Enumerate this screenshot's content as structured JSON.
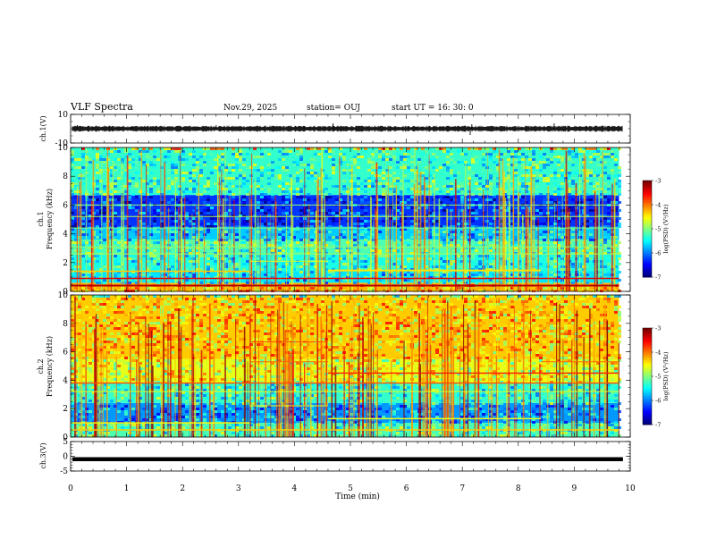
{
  "header": {
    "title": "VLF Spectra",
    "date": "Nov.29, 2025",
    "station": "station= OUJ",
    "start": "start  UT =   16: 30: 0"
  },
  "colors": {
    "background": "#ffffff",
    "axis": "#000000",
    "spectrogram_low": "#0a1a8c",
    "spectrogram_high": "#e00000"
  },
  "chart_data": [
    {
      "type": "line",
      "name": "ch1-waveform",
      "ylabel": "ch.1(V)",
      "ylim": [
        -10,
        10
      ],
      "yticks": [
        "10",
        "-10"
      ],
      "xlim": [
        0,
        10
      ],
      "baseline": 0
    },
    {
      "type": "heatmap",
      "name": "ch1-spectrogram",
      "ylabel_line1": "ch.1",
      "ylabel_line2": "Frequency  (kHz)",
      "ylim": [
        0,
        10
      ],
      "yticks": [
        "0",
        "2",
        "4",
        "6",
        "8",
        "10"
      ],
      "xlim": [
        0,
        9.8
      ],
      "colorbar": {
        "label": "log(PSD) (V²/Hz)",
        "range": [
          -7,
          -3
        ],
        "ticks": [
          "-3",
          "-4",
          "-5",
          "-6",
          "-7"
        ]
      },
      "bands_khz": [
        {
          "lo": 0,
          "hi": 0.6,
          "level": -4.2
        },
        {
          "lo": 0.6,
          "hi": 1.4,
          "level": -5.6
        },
        {
          "lo": 1.4,
          "hi": 2.6,
          "level": -5.4
        },
        {
          "lo": 2.6,
          "hi": 3.6,
          "level": -5.2
        },
        {
          "lo": 3.6,
          "hi": 4.5,
          "level": -5.7
        },
        {
          "lo": 4.5,
          "hi": 6.7,
          "level": -6.3
        },
        {
          "lo": 6.7,
          "hi": 10,
          "level": -5.3
        }
      ]
    },
    {
      "type": "heatmap",
      "name": "ch2-spectrogram",
      "ylabel_line1": "ch.2",
      "ylabel_line2": "Frequency  (kHz)",
      "ylim": [
        0,
        10
      ],
      "yticks": [
        "0",
        "2",
        "4",
        "6",
        "8",
        "10"
      ],
      "xlim": [
        0,
        9.8
      ],
      "colorbar": {
        "label": "log(PSD) (V²/Hz)",
        "range": [
          -7,
          -3
        ],
        "ticks": [
          "-3",
          "-4",
          "-5",
          "-6",
          "-7"
        ]
      },
      "bands_khz": [
        {
          "lo": 0,
          "hi": 1.0,
          "level": -5.2
        },
        {
          "lo": 1.0,
          "hi": 2.4,
          "level": -5.9
        },
        {
          "lo": 2.4,
          "hi": 3.8,
          "level": -5.3
        },
        {
          "lo": 3.8,
          "hi": 5.5,
          "level": -4.6
        },
        {
          "lo": 5.5,
          "hi": 10,
          "level": -4.3
        }
      ]
    },
    {
      "type": "line",
      "name": "ch3-waveform",
      "ylabel": "ch.3(V)",
      "ylim": [
        -5,
        5
      ],
      "yticks": [
        "5",
        "0",
        "-5"
      ],
      "xlim": [
        0,
        10
      ],
      "baseline": -1.0
    }
  ],
  "xaxis": {
    "label": "Time  (min)",
    "ticks": [
      "0",
      "1",
      "2",
      "3",
      "4",
      "5",
      "6",
      "7",
      "8",
      "9",
      "10"
    ],
    "range": [
      0,
      10
    ]
  }
}
